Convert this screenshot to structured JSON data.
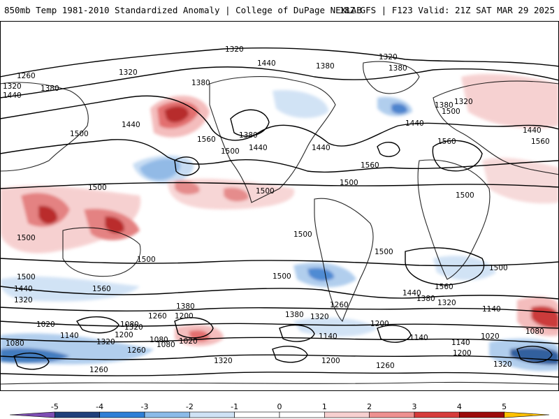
{
  "header": {
    "title_left": "850mb Temp 1981-2010 Standardized Anomaly | College of DuPage NEXLAB",
    "title_right": "18Z GFS | F123 Valid: 21Z SAT MAR 29 2025"
  },
  "map": {
    "contour_labels": [
      "1320",
      "1320",
      "1260",
      "1320",
      "1380",
      "1440",
      "1320",
      "1380",
      "1440",
      "1440",
      "1380",
      "1380",
      "1500",
      "1560",
      "1500",
      "1380",
      "1440",
      "1320",
      "1440",
      "1380",
      "1500",
      "1440",
      "1560",
      "1560",
      "1500",
      "1440",
      "1500",
      "1560",
      "1500",
      "1500",
      "1500",
      "1500",
      "1500",
      "1500",
      "1560",
      "1500",
      "1500",
      "1500",
      "1440",
      "1560",
      "1320",
      "1320",
      "1440",
      "1380",
      "1380",
      "1320",
      "1260",
      "1200",
      "1380",
      "1260",
      "1320",
      "1140",
      "1080",
      "1140",
      "1020",
      "1080",
      "1020",
      "1260",
      "1080",
      "1140",
      "1080",
      "1200",
      "1320",
      "1200",
      "1260",
      "1200",
      "1320",
      "1140",
      "1020",
      "1140",
      "1080",
      "1260",
      "1200",
      "1320"
    ]
  },
  "colorbar": {
    "colors": {
      "neg5": "#7e4db3",
      "neg4": "#1f3f7a",
      "neg3": "#2f7fd6",
      "neg2": "#8bbbe8",
      "neg1": "#cfe2f5",
      "zero": "#ffffff",
      "pos1": "#f7d0d0",
      "pos2": "#ee9090",
      "pos3": "#d63a3a",
      "pos4": "#9c0a0a",
      "pos5": "#ffc000"
    },
    "tick_labels": [
      "-5",
      "-4",
      "-3",
      "-2",
      "-1",
      "0",
      "1",
      "2",
      "3",
      "4",
      "5"
    ]
  }
}
